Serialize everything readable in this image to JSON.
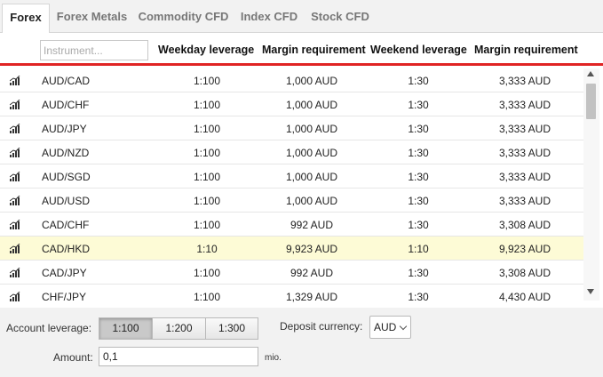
{
  "tabs": [
    {
      "label": "Forex",
      "active": true
    },
    {
      "label": "Forex Metals"
    },
    {
      "label": "Commodity CFD"
    },
    {
      "label": "Index CFD"
    },
    {
      "label": "Stock CFD"
    }
  ],
  "search": {
    "placeholder": "Instrument..."
  },
  "columns": {
    "weekday_leverage": "Weekday leverage",
    "margin_requirement": "Margin requirement",
    "weekend_leverage": "Weekend leverage",
    "weekend_margin_requirement": "Margin requirement"
  },
  "rows": [
    {
      "instrument": "AUD/CAD",
      "weekday_leverage": "1:100",
      "margin": "1,000 AUD",
      "weekend_leverage": "1:30",
      "weekend_margin": "3,333 AUD"
    },
    {
      "instrument": "AUD/CHF",
      "weekday_leverage": "1:100",
      "margin": "1,000 AUD",
      "weekend_leverage": "1:30",
      "weekend_margin": "3,333 AUD"
    },
    {
      "instrument": "AUD/JPY",
      "weekday_leverage": "1:100",
      "margin": "1,000 AUD",
      "weekend_leverage": "1:30",
      "weekend_margin": "3,333 AUD"
    },
    {
      "instrument": "AUD/NZD",
      "weekday_leverage": "1:100",
      "margin": "1,000 AUD",
      "weekend_leverage": "1:30",
      "weekend_margin": "3,333 AUD"
    },
    {
      "instrument": "AUD/SGD",
      "weekday_leverage": "1:100",
      "margin": "1,000 AUD",
      "weekend_leverage": "1:30",
      "weekend_margin": "3,333 AUD"
    },
    {
      "instrument": "AUD/USD",
      "weekday_leverage": "1:100",
      "margin": "1,000 AUD",
      "weekend_leverage": "1:30",
      "weekend_margin": "3,333 AUD"
    },
    {
      "instrument": "CAD/CHF",
      "weekday_leverage": "1:100",
      "margin": "992 AUD",
      "weekend_leverage": "1:30",
      "weekend_margin": "3,308 AUD"
    },
    {
      "instrument": "CAD/HKD",
      "weekday_leverage": "1:10",
      "margin": "9,923 AUD",
      "weekend_leverage": "1:10",
      "weekend_margin": "9,923 AUD",
      "highlighted": true
    },
    {
      "instrument": "CAD/JPY",
      "weekday_leverage": "1:100",
      "margin": "992 AUD",
      "weekend_leverage": "1:30",
      "weekend_margin": "3,308 AUD"
    },
    {
      "instrument": "CHF/JPY",
      "weekday_leverage": "1:100",
      "margin": "1,329 AUD",
      "weekend_leverage": "1:30",
      "weekend_margin": "4,430 AUD"
    }
  ],
  "row_icon": "chart-icon",
  "account_leverage": {
    "label": "Account leverage:",
    "options": [
      "1:100",
      "1:200",
      "1:300"
    ],
    "selected": "1:100"
  },
  "deposit_currency": {
    "label": "Deposit currency:",
    "value": "AUD"
  },
  "amount": {
    "label": "Amount:",
    "value": "0,1",
    "unit": "mio."
  },
  "colors": {
    "accent_line": "#e02424",
    "highlight_row": "#fdfbd6"
  }
}
